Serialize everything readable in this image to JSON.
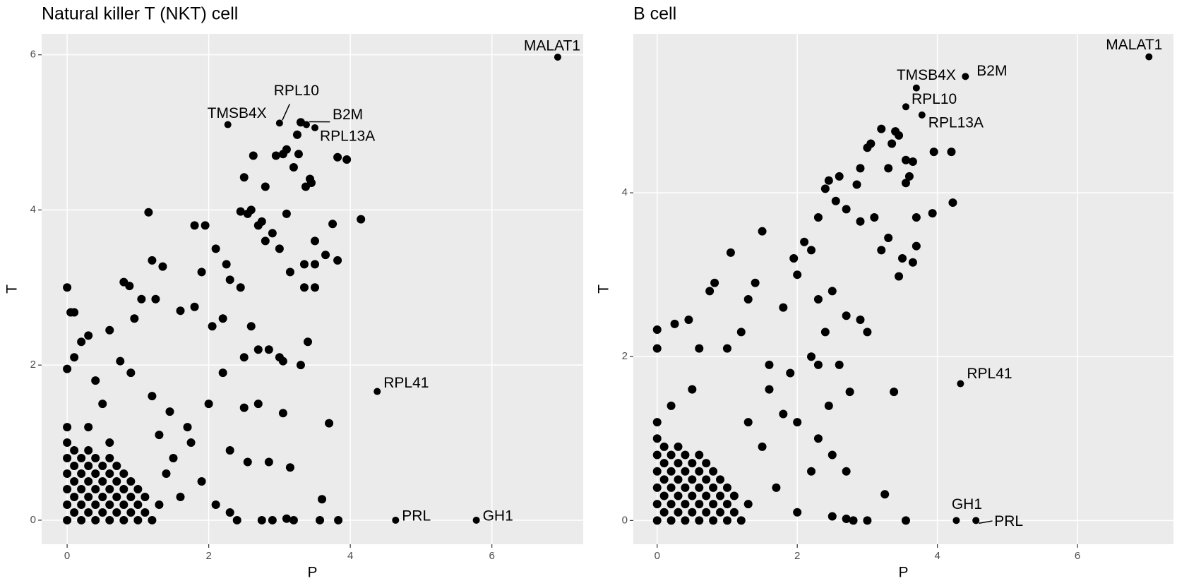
{
  "chart_data": [
    {
      "type": "scatter",
      "title": "Natural killer T (NKT) cell",
      "xlabel": "P",
      "ylabel": "T",
      "color": "#000000",
      "grid": true,
      "xlim": [
        -0.36,
        7.29
      ],
      "ylim": [
        -0.31,
        6.27
      ],
      "xticks": [
        0,
        2,
        4,
        6
      ],
      "yticks": [
        0,
        2,
        4,
        6
      ],
      "x": [
        3.25,
        3.3,
        3.82,
        3.95,
        2.63,
        3.1,
        3.05,
        2.95,
        3.27,
        3.43,
        3.37,
        3.2,
        3.45,
        2.5,
        2.6,
        2.45,
        2.55,
        2.8,
        2.7,
        2.8,
        2.75,
        2.9,
        3.0,
        3.1,
        3.15,
        3.35,
        3.5,
        3.5,
        3.75,
        3.82,
        4.15,
        3.65,
        1.15,
        1.2,
        1.35,
        0.8,
        0.88,
        0,
        1.8,
        1.95,
        1.9,
        2.1,
        2.25,
        2.3,
        2.45,
        3.35,
        3.5,
        3.4,
        3.3,
        2.6,
        2.7,
        2.5,
        2.85,
        3.0,
        3.05,
        2.2,
        2.05,
        1.8,
        1.6,
        1.05,
        1.25,
        0.95,
        0.05,
        0.1,
        0.2,
        0.3,
        0.6,
        0.75,
        0.1,
        0,
        0.4,
        0.9,
        1.2,
        1.45,
        1.7,
        2.0,
        2.2,
        2.5,
        2.7,
        3.05,
        3.7,
        2.3,
        2.55,
        2.85,
        3.15,
        3.6,
        1.9,
        2.1,
        2.3,
        2.4,
        2.75,
        2.9,
        3.1,
        3.2,
        3.57,
        3.83,
        1.5,
        1.6,
        1.75,
        1.4,
        1.3,
        0.5,
        0.3,
        0.6,
        0,
        0,
        0,
        0,
        0,
        0,
        0,
        0.1,
        0.1,
        0.1,
        0.1,
        0.1,
        0.2,
        0.2,
        0.2,
        0.2,
        0.2,
        0.3,
        0.3,
        0.3,
        0.3,
        0.3,
        0.4,
        0.4,
        0.4,
        0.4,
        0.4,
        0.5,
        0.5,
        0.5,
        0.5,
        0.6,
        0.6,
        0.6,
        0.6,
        0.6,
        0.7,
        0.7,
        0.7,
        0.7,
        0.8,
        0.8,
        0.8,
        0.8,
        0.9,
        0.9,
        0.9,
        1.0,
        1.0,
        1.0,
        1.1,
        1.1,
        1.2,
        1.3
      ],
      "y": [
        4.97,
        5.13,
        4.68,
        4.65,
        4.7,
        4.78,
        4.72,
        4.7,
        4.72,
        4.4,
        4.3,
        4.55,
        4.35,
        4.42,
        4.0,
        3.98,
        3.95,
        4.3,
        3.8,
        3.6,
        3.85,
        3.7,
        3.5,
        3.95,
        3.2,
        3.3,
        3.3,
        3.6,
        3.82,
        3.35,
        3.88,
        3.42,
        3.97,
        3.35,
        3.27,
        3.07,
        3.02,
        3.0,
        3.8,
        3.8,
        3.2,
        3.5,
        3.3,
        3.1,
        3.0,
        3.0,
        3.0,
        2.3,
        2.0,
        2.5,
        2.2,
        2.1,
        2.2,
        2.1,
        2.05,
        2.6,
        2.5,
        2.75,
        2.7,
        2.85,
        2.85,
        2.6,
        2.68,
        2.68,
        2.3,
        2.38,
        2.45,
        2.05,
        2.1,
        1.95,
        1.8,
        1.9,
        1.6,
        1.4,
        1.2,
        1.5,
        1.9,
        1.45,
        1.5,
        1.38,
        1.25,
        0.9,
        0.75,
        0.75,
        0.68,
        0.27,
        0.5,
        0.2,
        0.1,
        0,
        0,
        0,
        0.02,
        0,
        0,
        0,
        0.8,
        0.3,
        1.0,
        0.6,
        1.1,
        1.5,
        1.2,
        1.0,
        0,
        0.2,
        0.4,
        0.6,
        0.8,
        1.0,
        1.2,
        0.1,
        0.3,
        0.5,
        0.7,
        0.9,
        0,
        0.2,
        0.4,
        0.6,
        0.8,
        0.1,
        0.3,
        0.5,
        0.7,
        0.9,
        0,
        0.2,
        0.4,
        0.6,
        0.8,
        0.1,
        0.3,
        0.5,
        0.7,
        0,
        0.2,
        0.4,
        0.6,
        0.8,
        0.1,
        0.3,
        0.5,
        0.7,
        0,
        0.2,
        0.4,
        0.6,
        0.1,
        0.3,
        0.5,
        0,
        0.2,
        0.4,
        0.1,
        0.3,
        0,
        0.2
      ],
      "point_labels": [
        {
          "text": "MALAT1",
          "x": 6.93,
          "y": 5.97
        },
        {
          "text": "TMSB4X",
          "x": 2.27,
          "y": 5.1
        },
        {
          "text": "RPL10",
          "x": 3.0,
          "y": 5.12
        },
        {
          "text": "B2M",
          "x": 3.38,
          "y": 5.1
        },
        {
          "text": "RPL13A",
          "x": 3.5,
          "y": 5.06
        },
        {
          "text": "RPL41",
          "x": 4.38,
          "y": 1.66
        },
        {
          "text": "PRL",
          "x": 4.64,
          "y": 0
        },
        {
          "text": "GH1",
          "x": 5.78,
          "y": 0
        }
      ]
    },
    {
      "type": "scatter",
      "title": "B cell",
      "xlabel": "P",
      "ylabel": "T",
      "color": "#000000",
      "grid": true,
      "xlim": [
        -0.34,
        7.37
      ],
      "ylim": [
        -0.29,
        5.94
      ],
      "xticks": [
        0,
        2,
        4,
        6
      ],
      "yticks": [
        0,
        2,
        4
      ],
      "x": [
        3.2,
        3.4,
        3.45,
        3.0,
        3.05,
        3.35,
        3.55,
        3.65,
        3.95,
        4.2,
        4.22,
        3.93,
        3.7,
        3.6,
        3.55,
        3.3,
        2.9,
        2.85,
        2.6,
        2.45,
        2.4,
        2.55,
        2.3,
        2.7,
        2.9,
        3.1,
        3.2,
        3.3,
        3.5,
        3.65,
        3.7,
        3.45,
        2.1,
        2.0,
        1.95,
        2.2,
        2.3,
        2.5,
        2.7,
        2.9,
        3.0,
        2.4,
        2.2,
        1.8,
        1.5,
        1.4,
        1.3,
        1.05,
        0.75,
        0.82,
        0,
        0,
        0.25,
        0.45,
        0.6,
        1.0,
        1.2,
        1.6,
        1.9,
        2.3,
        2.6,
        2.45,
        2.75,
        3.38,
        1.8,
        2.0,
        2.3,
        2.5,
        2.7,
        3.25,
        2.2,
        2.5,
        2.7,
        2.8,
        3.0,
        3.55,
        2.0,
        1.7,
        1.5,
        1.3,
        0.5,
        0.2,
        1.6,
        0,
        0,
        0,
        0,
        0,
        0,
        0,
        0.1,
        0.1,
        0.1,
        0.1,
        0.1,
        0.2,
        0.2,
        0.2,
        0.2,
        0.2,
        0.3,
        0.3,
        0.3,
        0.3,
        0.3,
        0.4,
        0.4,
        0.4,
        0.4,
        0.4,
        0.5,
        0.5,
        0.5,
        0.5,
        0.6,
        0.6,
        0.6,
        0.6,
        0.6,
        0.7,
        0.7,
        0.7,
        0.7,
        0.8,
        0.8,
        0.8,
        0.8,
        0.9,
        0.9,
        0.9,
        1.0,
        1.0,
        1.0,
        1.1,
        1.1,
        1.2,
        1.3
      ],
      "y": [
        4.78,
        4.75,
        4.7,
        4.55,
        4.6,
        4.6,
        4.4,
        4.38,
        4.5,
        4.5,
        3.88,
        3.75,
        3.7,
        4.2,
        4.12,
        4.3,
        4.3,
        4.1,
        4.2,
        4.15,
        4.05,
        3.9,
        3.7,
        3.8,
        3.65,
        3.7,
        3.3,
        3.45,
        3.2,
        3.15,
        3.35,
        2.98,
        3.4,
        3.0,
        3.2,
        3.3,
        2.7,
        2.8,
        2.5,
        2.45,
        2.3,
        2.3,
        2.0,
        2.6,
        3.53,
        2.9,
        2.7,
        3.27,
        2.8,
        2.9,
        2.33,
        2.1,
        2.4,
        2.45,
        2.1,
        2.1,
        2.3,
        1.9,
        1.8,
        1.9,
        1.9,
        1.4,
        1.57,
        1.57,
        1.3,
        1.2,
        1.0,
        0.8,
        0.6,
        0.32,
        0.6,
        0.05,
        0.02,
        0,
        0,
        0,
        0.1,
        0.4,
        0.9,
        1.2,
        1.6,
        1.4,
        1.6,
        0,
        0.2,
        0.4,
        0.6,
        0.8,
        1.0,
        1.2,
        0.1,
        0.3,
        0.5,
        0.7,
        0.9,
        0,
        0.2,
        0.4,
        0.6,
        0.8,
        0.1,
        0.3,
        0.5,
        0.7,
        0.9,
        0,
        0.2,
        0.4,
        0.6,
        0.8,
        0.1,
        0.3,
        0.5,
        0.7,
        0,
        0.2,
        0.4,
        0.6,
        0.8,
        0.1,
        0.3,
        0.5,
        0.7,
        0,
        0.2,
        0.4,
        0.6,
        0.1,
        0.3,
        0.5,
        0,
        0.2,
        0.4,
        0.1,
        0.3,
        0,
        0.2
      ],
      "point_labels": [
        {
          "text": "MALAT1",
          "x": 7.02,
          "y": 5.66
        },
        {
          "text": "B2M",
          "x": 4.4,
          "y": 5.42
        },
        {
          "text": "TMSB4X",
          "x": 3.7,
          "y": 5.28
        },
        {
          "text": "RPL10",
          "x": 3.55,
          "y": 5.05
        },
        {
          "text": "RPL13A",
          "x": 3.78,
          "y": 4.95
        },
        {
          "text": "RPL41",
          "x": 4.33,
          "y": 1.67
        },
        {
          "text": "GH1",
          "x": 4.27,
          "y": 0
        },
        {
          "text": "PRL",
          "x": 4.55,
          "y": 0
        }
      ]
    }
  ]
}
